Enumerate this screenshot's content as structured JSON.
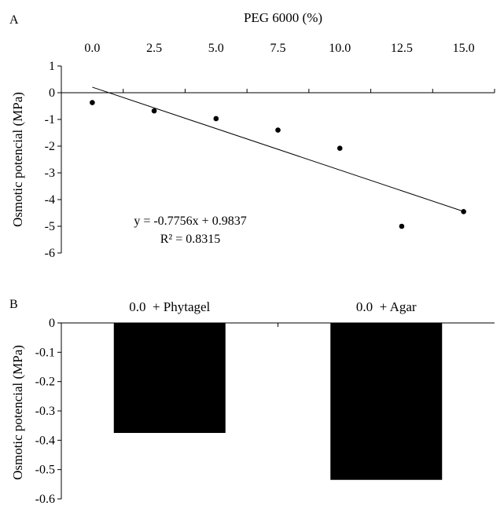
{
  "chart_data": [
    {
      "panel": "A",
      "type": "scatter",
      "title": "PEG 6000 (%)",
      "ylabel": "Osmotic potencial (MPa)",
      "x_ticks": [
        "0.0",
        "2.5",
        "5.0",
        "7.5",
        "10.0",
        "12.5",
        "15.0"
      ],
      "y_ticks": [
        "1",
        "0",
        "-1",
        "-2",
        "-3",
        "-4",
        "-5",
        "-6"
      ],
      "xlim": [
        0,
        15
      ],
      "ylim": [
        -6,
        1
      ],
      "points": [
        {
          "x": 0.0,
          "y": -0.37
        },
        {
          "x": 2.5,
          "y": -0.68
        },
        {
          "x": 5.0,
          "y": -0.97
        },
        {
          "x": 7.5,
          "y": -1.4
        },
        {
          "x": 10.0,
          "y": -2.08
        },
        {
          "x": 12.5,
          "y": -5.0
        },
        {
          "x": 15.0,
          "y": -4.45
        }
      ],
      "trendline": {
        "slope": -0.7756,
        "intercept": 0.9837,
        "x_index_start": 1
      },
      "equation": "y = -0.7756x + 0.9837",
      "r_squared": "R² = 0.8315",
      "grid": false
    },
    {
      "panel": "B",
      "type": "bar",
      "categories": [
        "0.0  + Phytagel",
        "0.0  + Agar"
      ],
      "values": [
        -0.375,
        -0.535
      ],
      "ylabel": "Osmotic potencial (MPa)",
      "y_ticks": [
        "0",
        "-0.1",
        "-0.2",
        "-0.3",
        "-0.4",
        "-0.5",
        "-0.6"
      ],
      "ylim": [
        -0.6,
        0
      ],
      "bar_color": "#000000",
      "grid": false
    }
  ]
}
